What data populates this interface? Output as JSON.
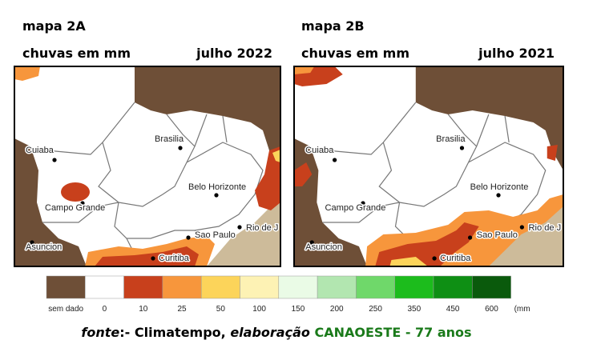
{
  "maps": [
    {
      "title": "mapa 2A",
      "subtitle": "chuvas em mm",
      "date": "julho 2022",
      "cities": [
        "Cuiaba",
        "Brasilia",
        "Belo Horizonte",
        "Campo Grande",
        "Rio de J",
        "Sao Paulo",
        "Asuncion",
        "Curitiba"
      ]
    },
    {
      "title": "mapa 2B",
      "subtitle": "chuvas em mm",
      "date": "julho 2021",
      "cities": [
        "Cuiaba",
        "Brasilia",
        "Belo Horizonte",
        "Campo Grande",
        "Rio de J",
        "Sao Paulo",
        "Asuncion",
        "Curitiba"
      ]
    }
  ],
  "legend": {
    "items": [
      {
        "label": "sem dado",
        "color": "#6e4f37"
      },
      {
        "label": "0",
        "color": "#ffffff"
      },
      {
        "label": "10",
        "color": "#c8401c"
      },
      {
        "label": "25",
        "color": "#f7963c"
      },
      {
        "label": "50",
        "color": "#fcd45a"
      },
      {
        "label": "100",
        "color": "#fdf2b4"
      },
      {
        "label": "150",
        "color": "#eafbe6"
      },
      {
        "label": "200",
        "color": "#b2e6b0"
      },
      {
        "label": "250",
        "color": "#6fd86a"
      },
      {
        "label": "350",
        "color": "#1cbc1c"
      },
      {
        "label": "450",
        "color": "#0e8f14"
      },
      {
        "label": "600",
        "color": "#0a5a0c"
      }
    ],
    "unit": "(mm"
  },
  "footer": {
    "source_label": "fonte",
    "source": ":- Climatempo, ",
    "credit_label": "elaboração",
    "organization": "CANAOESTE",
    "anniversary": " - 77 anos"
  }
}
